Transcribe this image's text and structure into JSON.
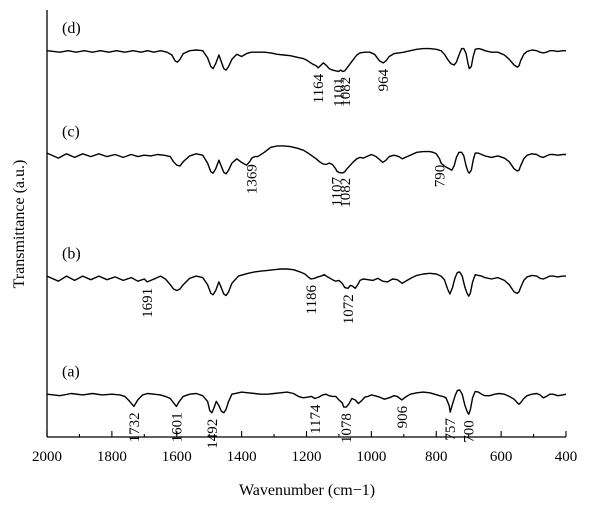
{
  "chart_data": {
    "type": "line",
    "xlabel": "Wavenumber (cm−1)",
    "ylabel": "Transmittance (a.u.)",
    "xlim": [
      2000,
      400
    ],
    "x_reversed": true,
    "xticks": [
      "2000",
      "1800",
      "1600",
      "1400",
      "1200",
      "1000",
      "800",
      "600",
      "400"
    ],
    "xtick_values": [
      2000,
      1800,
      1600,
      1400,
      1200,
      1000,
      800,
      600,
      400
    ],
    "yticks_shown": false,
    "grid": false,
    "legend": "none",
    "series": [
      {
        "name": "(a)",
        "offset": 0.2,
        "x": [
          2000,
          1960,
          1925,
          1890,
          1860,
          1830,
          1800,
          1775,
          1760,
          1745,
          1732,
          1720,
          1705,
          1690,
          1670,
          1650,
          1635,
          1620,
          1610,
          1601,
          1592,
          1580,
          1560,
          1540,
          1520,
          1505,
          1498,
          1492,
          1486,
          1478,
          1470,
          1462,
          1455,
          1448,
          1440,
          1430,
          1410,
          1400,
          1380,
          1360,
          1340,
          1320,
          1300,
          1280,
          1260,
          1240,
          1225,
          1210,
          1195,
          1185,
          1174,
          1162,
          1150,
          1140,
          1130,
          1120,
          1110,
          1100,
          1090,
          1085,
          1078,
          1070,
          1060,
          1050,
          1040,
          1030,
          1020,
          1010,
          1000,
          990,
          975,
          960,
          945,
          930,
          920,
          906,
          895,
          880,
          860,
          840,
          820,
          805,
          790,
          780,
          770,
          760,
          757,
          750,
          742,
          735,
          728,
          720,
          712,
          705,
          700,
          695,
          688,
          680,
          670,
          660,
          650,
          635,
          620,
          605,
          590,
          575,
          560,
          550,
          545,
          540,
          530,
          520,
          505,
          490,
          480,
          470,
          460,
          450,
          440,
          425,
          410,
          400
        ],
        "values": [
          0.3,
          0.28,
          0.31,
          0.29,
          0.31,
          0.29,
          0.3,
          0.29,
          0.27,
          0.2,
          0.13,
          0.22,
          0.29,
          0.31,
          0.3,
          0.29,
          0.27,
          0.24,
          0.18,
          0.13,
          0.2,
          0.27,
          0.3,
          0.31,
          0.28,
          0.2,
          0.07,
          0.04,
          0.1,
          0.2,
          0.14,
          0.06,
          0.04,
          0.09,
          0.2,
          0.3,
          0.32,
          0.33,
          0.32,
          0.31,
          0.3,
          0.3,
          0.31,
          0.32,
          0.33,
          0.31,
          0.27,
          0.25,
          0.26,
          0.27,
          0.24,
          0.26,
          0.29,
          0.3,
          0.28,
          0.27,
          0.27,
          0.22,
          0.18,
          0.12,
          0.12,
          0.16,
          0.24,
          0.22,
          0.17,
          0.21,
          0.26,
          0.27,
          0.29,
          0.28,
          0.26,
          0.23,
          0.25,
          0.28,
          0.27,
          0.22,
          0.26,
          0.3,
          0.32,
          0.33,
          0.32,
          0.3,
          0.28,
          0.27,
          0.25,
          0.14,
          0.05,
          0.16,
          0.28,
          0.35,
          0.36,
          0.3,
          0.15,
          0.06,
          0.02,
          0.08,
          0.25,
          0.34,
          0.33,
          0.3,
          0.28,
          0.28,
          0.3,
          0.31,
          0.3,
          0.27,
          0.23,
          0.18,
          0.16,
          0.18,
          0.24,
          0.28,
          0.3,
          0.31,
          0.29,
          0.25,
          0.27,
          0.3,
          0.3,
          0.28,
          0.29,
          0.3
        ]
      },
      {
        "name": "(b)",
        "offset": 1.85,
        "x": [
          2000,
          1965,
          1940,
          1915,
          1890,
          1865,
          1840,
          1815,
          1790,
          1765,
          1740,
          1720,
          1700,
          1691,
          1680,
          1665,
          1650,
          1635,
          1620,
          1610,
          1600,
          1590,
          1580,
          1560,
          1540,
          1520,
          1505,
          1495,
          1488,
          1480,
          1470,
          1462,
          1455,
          1448,
          1440,
          1430,
          1410,
          1395,
          1380,
          1360,
          1340,
          1320,
          1300,
          1280,
          1260,
          1240,
          1220,
          1205,
          1195,
          1186,
          1175,
          1165,
          1155,
          1145,
          1135,
          1120,
          1110,
          1100,
          1090,
          1082,
          1072,
          1065,
          1058,
          1050,
          1042,
          1035,
          1025,
          1010,
          995,
          980,
          965,
          950,
          935,
          920,
          905,
          890,
          875,
          860,
          840,
          820,
          800,
          785,
          775,
          765,
          758,
          750,
          742,
          735,
          728,
          720,
          712,
          705,
          700,
          695,
          688,
          680,
          670,
          660,
          650,
          630,
          610,
          590,
          575,
          560,
          550,
          545,
          540,
          530,
          520,
          505,
          490,
          480,
          470,
          460,
          450,
          440,
          425,
          410,
          400
        ],
        "values": [
          0.3,
          0.23,
          0.3,
          0.24,
          0.3,
          0.25,
          0.3,
          0.25,
          0.29,
          0.24,
          0.28,
          0.23,
          0.26,
          0.22,
          0.24,
          0.27,
          0.3,
          0.26,
          0.18,
          0.12,
          0.1,
          0.12,
          0.18,
          0.27,
          0.3,
          0.28,
          0.18,
          0.06,
          0.04,
          0.1,
          0.22,
          0.13,
          0.05,
          0.03,
          0.08,
          0.2,
          0.3,
          0.32,
          0.34,
          0.36,
          0.37,
          0.38,
          0.39,
          0.4,
          0.4,
          0.39,
          0.36,
          0.33,
          0.29,
          0.26,
          0.27,
          0.29,
          0.3,
          0.32,
          0.29,
          0.25,
          0.23,
          0.24,
          0.2,
          0.14,
          0.13,
          0.17,
          0.16,
          0.13,
          0.18,
          0.24,
          0.26,
          0.25,
          0.24,
          0.27,
          0.23,
          0.22,
          0.26,
          0.25,
          0.2,
          0.24,
          0.28,
          0.31,
          0.33,
          0.34,
          0.33,
          0.3,
          0.25,
          0.12,
          0.05,
          0.14,
          0.28,
          0.35,
          0.36,
          0.3,
          0.15,
          0.06,
          0.02,
          0.06,
          0.22,
          0.32,
          0.31,
          0.3,
          0.28,
          0.26,
          0.28,
          0.24,
          0.18,
          0.08,
          0.06,
          0.08,
          0.14,
          0.24,
          0.29,
          0.31,
          0.3,
          0.27,
          0.26,
          0.28,
          0.3,
          0.3,
          0.29,
          0.3,
          0.3
        ]
      },
      {
        "name": "(c)",
        "offset": 3.55,
        "x": [
          2000,
          1965,
          1940,
          1915,
          1890,
          1865,
          1840,
          1815,
          1790,
          1765,
          1740,
          1720,
          1700,
          1680,
          1660,
          1640,
          1620,
          1610,
          1600,
          1590,
          1580,
          1560,
          1540,
          1520,
          1505,
          1495,
          1488,
          1480,
          1470,
          1462,
          1455,
          1448,
          1440,
          1430,
          1415,
          1400,
          1385,
          1375,
          1369,
          1360,
          1350,
          1330,
          1310,
          1290,
          1270,
          1250,
          1230,
          1210,
          1195,
          1180,
          1170,
          1160,
          1150,
          1140,
          1130,
          1120,
          1110,
          1107,
          1100,
          1090,
          1082,
          1075,
          1065,
          1055,
          1045,
          1035,
          1025,
          1015,
          1000,
          985,
          975,
          965,
          955,
          945,
          930,
          915,
          905,
          890,
          875,
          860,
          840,
          820,
          810,
          800,
          790,
          785,
          780,
          775,
          768,
          760,
          752,
          745,
          738,
          730,
          722,
          715,
          708,
          702,
          698,
          692,
          686,
          680,
          670,
          660,
          650,
          630,
          610,
          590,
          575,
          560,
          550,
          545,
          540,
          530,
          520,
          505,
          490,
          480,
          470,
          460,
          450,
          440,
          425,
          410,
          400
        ],
        "values": [
          0.32,
          0.25,
          0.31,
          0.26,
          0.31,
          0.27,
          0.31,
          0.27,
          0.3,
          0.26,
          0.3,
          0.27,
          0.29,
          0.28,
          0.3,
          0.29,
          0.27,
          0.2,
          0.15,
          0.14,
          0.2,
          0.28,
          0.31,
          0.29,
          0.18,
          0.06,
          0.04,
          0.1,
          0.22,
          0.13,
          0.05,
          0.03,
          0.08,
          0.18,
          0.24,
          0.19,
          0.15,
          0.2,
          0.25,
          0.27,
          0.27,
          0.33,
          0.4,
          0.42,
          0.42,
          0.41,
          0.39,
          0.36,
          0.32,
          0.27,
          0.24,
          0.2,
          0.17,
          0.16,
          0.18,
          0.16,
          0.1,
          0.07,
          0.05,
          0.04,
          0.06,
          0.1,
          0.15,
          0.2,
          0.24,
          0.26,
          0.25,
          0.27,
          0.3,
          0.27,
          0.23,
          0.19,
          0.22,
          0.27,
          0.29,
          0.27,
          0.24,
          0.27,
          0.3,
          0.33,
          0.34,
          0.34,
          0.33,
          0.31,
          0.24,
          0.18,
          0.16,
          0.14,
          0.12,
          0.1,
          0.08,
          0.14,
          0.26,
          0.33,
          0.33,
          0.28,
          0.14,
          0.06,
          0.04,
          0.08,
          0.22,
          0.32,
          0.32,
          0.3,
          0.28,
          0.26,
          0.28,
          0.25,
          0.2,
          0.1,
          0.07,
          0.08,
          0.14,
          0.24,
          0.29,
          0.31,
          0.3,
          0.27,
          0.26,
          0.28,
          0.3,
          0.3,
          0.29,
          0.3,
          0.3
        ]
      },
      {
        "name": "(d)",
        "offset": 5.0,
        "x": [
          2000,
          1960,
          1935,
          1910,
          1885,
          1860,
          1835,
          1810,
          1785,
          1760,
          1735,
          1710,
          1690,
          1670,
          1650,
          1630,
          1615,
          1605,
          1598,
          1590,
          1580,
          1560,
          1540,
          1520,
          1505,
          1495,
          1488,
          1480,
          1470,
          1462,
          1455,
          1448,
          1440,
          1430,
          1415,
          1400,
          1385,
          1370,
          1350,
          1330,
          1310,
          1290,
          1270,
          1250,
          1230,
          1210,
          1200,
          1190,
          1180,
          1170,
          1164,
          1155,
          1148,
          1140,
          1130,
          1120,
          1110,
          1101,
          1095,
          1088,
          1082,
          1075,
          1065,
          1055,
          1045,
          1035,
          1020,
          1005,
          990,
          975,
          964,
          955,
          945,
          930,
          915,
          900,
          880,
          860,
          840,
          820,
          800,
          785,
          775,
          765,
          755,
          745,
          738,
          730,
          722,
          715,
          708,
          702,
          698,
          692,
          686,
          680,
          670,
          660,
          650,
          630,
          610,
          590,
          575,
          560,
          550,
          545,
          540,
          530,
          520,
          505,
          490,
          480,
          470,
          460,
          450,
          440,
          425,
          410,
          400
        ],
        "values": [
          0.3,
          0.28,
          0.3,
          0.28,
          0.3,
          0.28,
          0.3,
          0.28,
          0.3,
          0.28,
          0.3,
          0.28,
          0.3,
          0.28,
          0.3,
          0.28,
          0.24,
          0.16,
          0.14,
          0.18,
          0.26,
          0.3,
          0.31,
          0.3,
          0.2,
          0.08,
          0.05,
          0.12,
          0.24,
          0.14,
          0.05,
          0.03,
          0.08,
          0.18,
          0.25,
          0.22,
          0.26,
          0.28,
          0.28,
          0.28,
          0.27,
          0.25,
          0.24,
          0.23,
          0.21,
          0.19,
          0.17,
          0.14,
          0.11,
          0.09,
          0.06,
          0.1,
          0.13,
          0.1,
          0.05,
          0.03,
          0.02,
          0.01,
          0.03,
          0.01,
          0.02,
          0.06,
          0.12,
          0.18,
          0.24,
          0.27,
          0.28,
          0.28,
          0.25,
          0.16,
          0.13,
          0.16,
          0.22,
          0.26,
          0.27,
          0.28,
          0.3,
          0.32,
          0.33,
          0.33,
          0.32,
          0.3,
          0.25,
          0.18,
          0.12,
          0.1,
          0.14,
          0.24,
          0.33,
          0.33,
          0.26,
          0.12,
          0.05,
          0.08,
          0.22,
          0.32,
          0.33,
          0.32,
          0.3,
          0.28,
          0.28,
          0.24,
          0.18,
          0.1,
          0.07,
          0.09,
          0.16,
          0.25,
          0.29,
          0.31,
          0.3,
          0.28,
          0.27,
          0.28,
          0.3,
          0.3,
          0.29,
          0.3,
          0.3
        ]
      }
    ],
    "peak_labels": [
      {
        "series": "(a)",
        "text": "1732",
        "x": 1732
      },
      {
        "series": "(a)",
        "text": "1601",
        "x": 1601
      },
      {
        "series": "(a)",
        "text": "1492",
        "x": 1492
      },
      {
        "series": "(a)",
        "text": "1174",
        "x": 1174
      },
      {
        "series": "(a)",
        "text": "1078",
        "x": 1078
      },
      {
        "series": "(a)",
        "text": "906",
        "x": 906
      },
      {
        "series": "(a)",
        "text": "757",
        "x": 757
      },
      {
        "series": "(a)",
        "text": "700",
        "x": 700
      },
      {
        "series": "(b)",
        "text": "1691",
        "x": 1691
      },
      {
        "series": "(b)",
        "text": "1186",
        "x": 1186
      },
      {
        "series": "(b)",
        "text": "1072",
        "x": 1072
      },
      {
        "series": "(c)",
        "text": "1369",
        "x": 1369
      },
      {
        "series": "(c)",
        "text": "1107",
        "x": 1107
      },
      {
        "series": "(c)",
        "text": "1082",
        "x": 1082
      },
      {
        "series": "(c)",
        "text": "790",
        "x": 790
      },
      {
        "series": "(d)",
        "text": "1164",
        "x": 1164
      },
      {
        "series": "(d)",
        "text": "1101",
        "x": 1101
      },
      {
        "series": "(d)",
        "text": "1082",
        "x": 1082
      },
      {
        "series": "(d)",
        "text": "964",
        "x": 964
      }
    ]
  }
}
